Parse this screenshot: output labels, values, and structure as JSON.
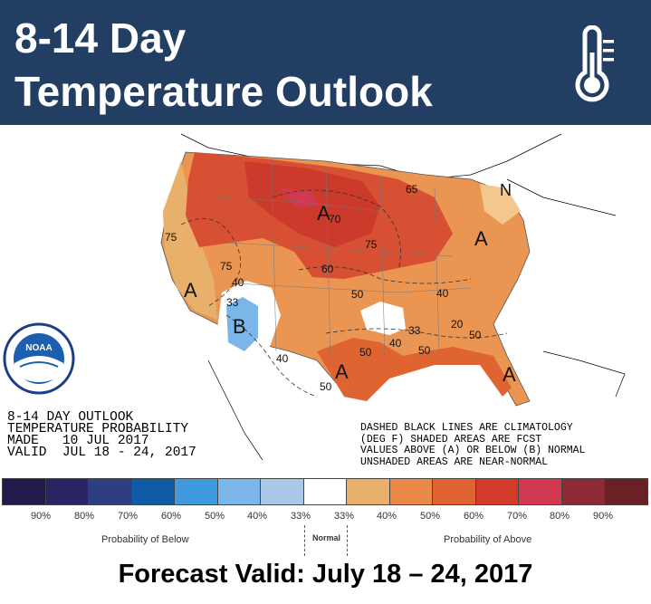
{
  "header": {
    "title_line1": "8-14 Day",
    "title_line2": "Temperature Outlook",
    "background": "#223e63",
    "icon": "thermometer-icon"
  },
  "map": {
    "labels": {
      "A_north": "A",
      "A_west": "A",
      "A_south": "A",
      "A_east": "A",
      "A_florida": "A",
      "B_southwest": "B",
      "N_northeast": "N",
      "c75_nw": "75",
      "c75_w": "75",
      "c70_n": "70",
      "c75_mid": "75",
      "c65_ne": "65",
      "c60": "60",
      "c40_w": "40",
      "c50_c": "50",
      "c40_e": "40",
      "c50_tx": "50",
      "c40_tx": "40",
      "c50_gulf": "50",
      "c50_se": "50",
      "c33_se": "33",
      "c33_sw": "33",
      "c40_sw": "40",
      "c50_txs": "50",
      "c20": "20"
    },
    "info_text": "8-14 DAY OUTLOOK\nTEMPERATURE PROBABILITY\nMADE   10 JUL 2017\nVALID  JUL 18 - 24, 2017",
    "note_text": "DASHED BLACK LINES ARE CLIMATOLOGY\n(DEG F) SHADED AREAS ARE FCST\nVALUES ABOVE (A) OR BELOW (B) NORMAL\nUNSHADED AREAS ARE NEAR-NORMAL",
    "logo_text": "NOAA"
  },
  "legend": {
    "colors": [
      "#211a4d",
      "#2a2465",
      "#2d3f80",
      "#0f5ba6",
      "#3f9ae0",
      "#7ab6e8",
      "#a8c8e8",
      "#ffffff",
      "#e8b06a",
      "#e8894a",
      "#e06432",
      "#d23a2a",
      "#d23850",
      "#8c2a36",
      "#6a2026"
    ],
    "ticks": [
      "90%",
      "80%",
      "70%",
      "60%",
      "50%",
      "40%",
      "33%",
      "33%",
      "40%",
      "50%",
      "60%",
      "70%",
      "80%",
      "90%"
    ],
    "below_label": "Probability of Below",
    "normal_label": "Normal",
    "above_label": "Probability of Above"
  },
  "footer": {
    "text": "Forecast Valid: July 18 – 24, 2017"
  }
}
